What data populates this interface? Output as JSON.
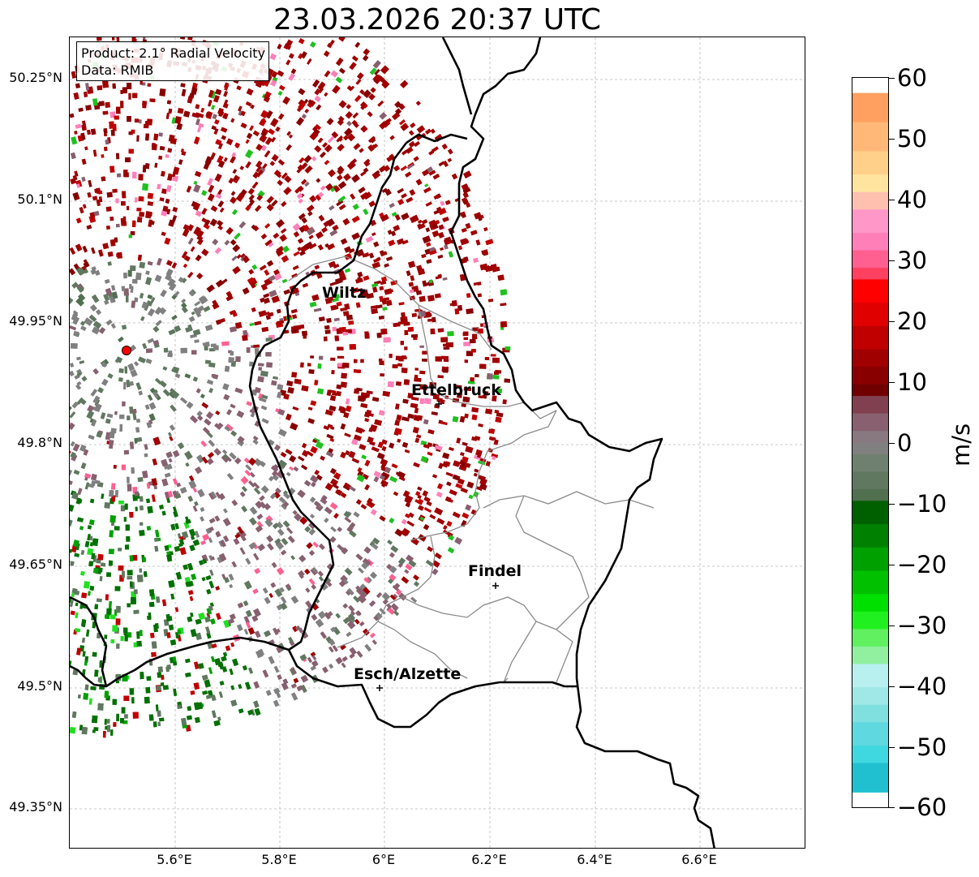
{
  "title": "23.03.2026 20:37 UTC",
  "info": {
    "product": "Product: 2.1° Radial Velocity",
    "data": "Data: RMIB"
  },
  "map": {
    "lat_ticks": [
      "50.25°N",
      "50.1°N",
      "49.95°N",
      "49.8°N",
      "49.65°N",
      "49.5°N",
      "49.35°N"
    ],
    "lon_ticks": [
      "5.6°E",
      "5.8°E",
      "6°E",
      "6.2°E",
      "6.4°E",
      "6.6°E"
    ],
    "cities": [
      {
        "name": "Wiltz"
      },
      {
        "name": "Ettelbruck"
      },
      {
        "name": "Findel"
      },
      {
        "name": "Esch/Alzette"
      }
    ],
    "radar_site_color": "#ff0000"
  },
  "colorbar": {
    "unit": "m/s",
    "ticks": [
      "60",
      "50",
      "40",
      "30",
      "20",
      "10",
      "0",
      "−10",
      "−20",
      "−30",
      "−40",
      "−50",
      "−60"
    ],
    "range": [
      -60,
      60
    ]
  }
}
